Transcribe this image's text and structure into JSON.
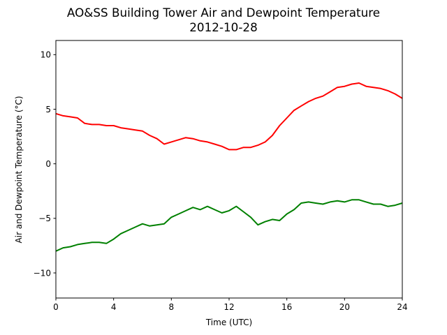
{
  "chart_data": {
    "type": "line",
    "title": "AO&SS Building Tower Air and Dewpoint Temperature",
    "subtitle": "2012-10-28",
    "xlabel": "Time (UTC)",
    "ylabel": "Air and Dewpoint Temperature (°C)",
    "xlim": [
      0,
      24
    ],
    "ylim": [
      -12.3,
      11.3
    ],
    "xticks": [
      0,
      4,
      8,
      12,
      16,
      20,
      24
    ],
    "yticks": [
      -10,
      -5,
      0,
      5,
      10
    ],
    "grid": false,
    "series": [
      {
        "color": "#ff0000",
        "x": [
          0,
          0.5,
          1,
          1.5,
          2,
          2.5,
          3,
          3.5,
          4,
          4.5,
          5,
          5.5,
          6,
          6.5,
          7,
          7.5,
          8,
          8.5,
          9,
          9.5,
          10,
          10.5,
          11,
          11.5,
          12,
          12.5,
          13,
          13.5,
          14,
          14.5,
          15,
          15.5,
          16,
          16.5,
          17,
          17.5,
          18,
          18.5,
          19,
          19.5,
          20,
          20.5,
          21,
          21.5,
          22,
          22.5,
          23,
          23.5,
          24
        ],
        "values": [
          4.6,
          4.4,
          4.3,
          4.2,
          3.7,
          3.6,
          3.6,
          3.5,
          3.5,
          3.3,
          3.2,
          3.1,
          3.0,
          2.6,
          2.3,
          1.8,
          2.0,
          2.2,
          2.4,
          2.3,
          2.1,
          2.0,
          1.8,
          1.6,
          1.3,
          1.3,
          1.5,
          1.5,
          1.7,
          2.0,
          2.6,
          3.5,
          4.2,
          4.9,
          5.3,
          5.7,
          6.0,
          6.2,
          6.6,
          7.0,
          7.1,
          7.3,
          7.4,
          7.1,
          7.0,
          6.9,
          6.7,
          6.4,
          6.0
        ]
      },
      {
        "color": "#008000",
        "x": [
          0,
          0.5,
          1,
          1.5,
          2,
          2.5,
          3,
          3.5,
          4,
          4.5,
          5,
          5.5,
          6,
          6.5,
          7,
          7.5,
          8,
          8.5,
          9,
          9.5,
          10,
          10.5,
          11,
          11.5,
          12,
          12.5,
          13,
          13.5,
          14,
          14.5,
          15,
          15.5,
          16,
          16.5,
          17,
          17.5,
          18,
          18.5,
          19,
          19.5,
          20,
          20.5,
          21,
          21.5,
          22,
          22.5,
          23,
          23.5,
          24
        ],
        "values": [
          -8.0,
          -7.7,
          -7.6,
          -7.4,
          -7.3,
          -7.2,
          -7.2,
          -7.3,
          -6.9,
          -6.4,
          -6.1,
          -5.8,
          -5.5,
          -5.7,
          -5.6,
          -5.5,
          -4.9,
          -4.6,
          -4.3,
          -4.0,
          -4.2,
          -3.9,
          -4.2,
          -4.5,
          -4.3,
          -3.9,
          -4.4,
          -4.9,
          -5.6,
          -5.3,
          -5.1,
          -5.2,
          -4.6,
          -4.2,
          -3.6,
          -3.5,
          -3.6,
          -3.7,
          -3.5,
          -3.4,
          -3.5,
          -3.3,
          -3.3,
          -3.5,
          -3.7,
          -3.7,
          -3.9,
          -3.8,
          -3.6
        ]
      }
    ]
  }
}
